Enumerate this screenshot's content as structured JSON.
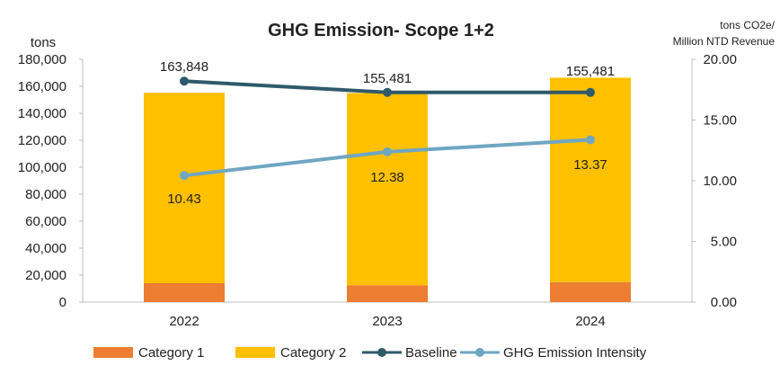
{
  "chart_data": {
    "type": "bar",
    "title": "GHG Emission- Scope 1+2",
    "ylabel": "tons",
    "y2label_line1": "tons CO2e/",
    "y2label_line2": "Million NTD Revenue",
    "categories": [
      "2022",
      "2023",
      "2024"
    ],
    "ylim": [
      0,
      180000
    ],
    "yticks": [
      "0",
      "20,000",
      "40,000",
      "60,000",
      "80,000",
      "100,000",
      "120,000",
      "140,000",
      "160,000",
      "180,000"
    ],
    "y2lim": [
      0,
      20
    ],
    "y2ticks": [
      "0.00",
      "5.00",
      "10.00",
      "15.00",
      "20.00"
    ],
    "grid": false,
    "legend_position": "bottom",
    "series": [
      {
        "name": "Category 1",
        "type": "bar",
        "axis": "left",
        "color": "#ED7D31",
        "values": [
          14000,
          12500,
          14800
        ]
      },
      {
        "name": "Category 2",
        "type": "bar",
        "axis": "left",
        "color": "#FFC000",
        "values": [
          141200,
          142500,
          151600
        ]
      },
      {
        "name": "Baseline",
        "type": "line",
        "axis": "left",
        "color": "#2E5A6B",
        "values": [
          163848,
          155481,
          155481
        ],
        "labels": [
          "163,848",
          "155,481",
          "155,481"
        ]
      },
      {
        "name": "GHG Emission Intensity",
        "type": "line",
        "axis": "right",
        "color": "#6FA6C2",
        "values": [
          10.43,
          12.38,
          13.37
        ],
        "labels": [
          "10.43",
          "12.38",
          "13.37"
        ]
      }
    ],
    "top_labels": [
      "163,848",
      "155,481",
      "155,481"
    ]
  }
}
